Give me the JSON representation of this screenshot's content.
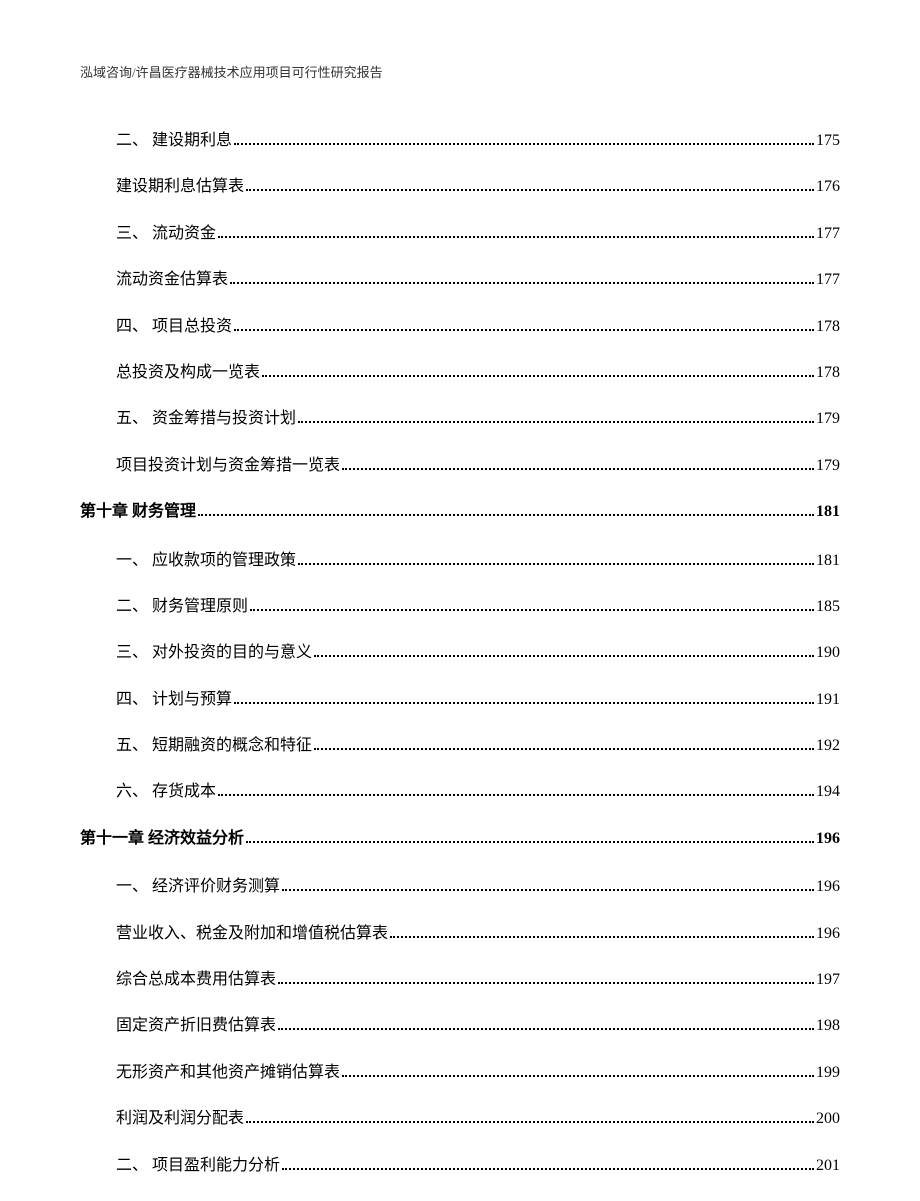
{
  "header": "泓域咨询/许昌医疗器械技术应用项目可行性研究报告",
  "entries": [
    {
      "label": "二、 建设期利息",
      "page": "175",
      "type": "sub"
    },
    {
      "label": "建设期利息估算表",
      "page": "176",
      "type": "sub"
    },
    {
      "label": "三、 流动资金",
      "page": "177",
      "type": "sub"
    },
    {
      "label": "流动资金估算表",
      "page": "177",
      "type": "sub"
    },
    {
      "label": "四、 项目总投资",
      "page": "178",
      "type": "sub"
    },
    {
      "label": "总投资及构成一览表",
      "page": "178",
      "type": "sub"
    },
    {
      "label": "五、 资金筹措与投资计划",
      "page": "179",
      "type": "sub"
    },
    {
      "label": "项目投资计划与资金筹措一览表",
      "page": "179",
      "type": "sub"
    },
    {
      "label": "第十章 财务管理",
      "page": "181",
      "type": "chapter"
    },
    {
      "label": "一、 应收款项的管理政策",
      "page": "181",
      "type": "sub"
    },
    {
      "label": "二、 财务管理原则",
      "page": "185",
      "type": "sub"
    },
    {
      "label": "三、 对外投资的目的与意义",
      "page": "190",
      "type": "sub"
    },
    {
      "label": "四、 计划与预算",
      "page": "191",
      "type": "sub"
    },
    {
      "label": "五、 短期融资的概念和特征",
      "page": "192",
      "type": "sub"
    },
    {
      "label": "六、 存货成本",
      "page": "194",
      "type": "sub"
    },
    {
      "label": "第十一章 经济效益分析",
      "page": "196",
      "type": "chapter"
    },
    {
      "label": "一、 经济评价财务测算",
      "page": "196",
      "type": "sub"
    },
    {
      "label": "营业收入、税金及附加和增值税估算表",
      "page": "196",
      "type": "sub"
    },
    {
      "label": "综合总成本费用估算表",
      "page": "197",
      "type": "sub"
    },
    {
      "label": "固定资产折旧费估算表",
      "page": "198",
      "type": "sub"
    },
    {
      "label": "无形资产和其他资产摊销估算表",
      "page": "199",
      "type": "sub"
    },
    {
      "label": "利润及利润分配表",
      "page": "200",
      "type": "sub"
    },
    {
      "label": "二、 项目盈利能力分析",
      "page": "201",
      "type": "sub"
    }
  ]
}
